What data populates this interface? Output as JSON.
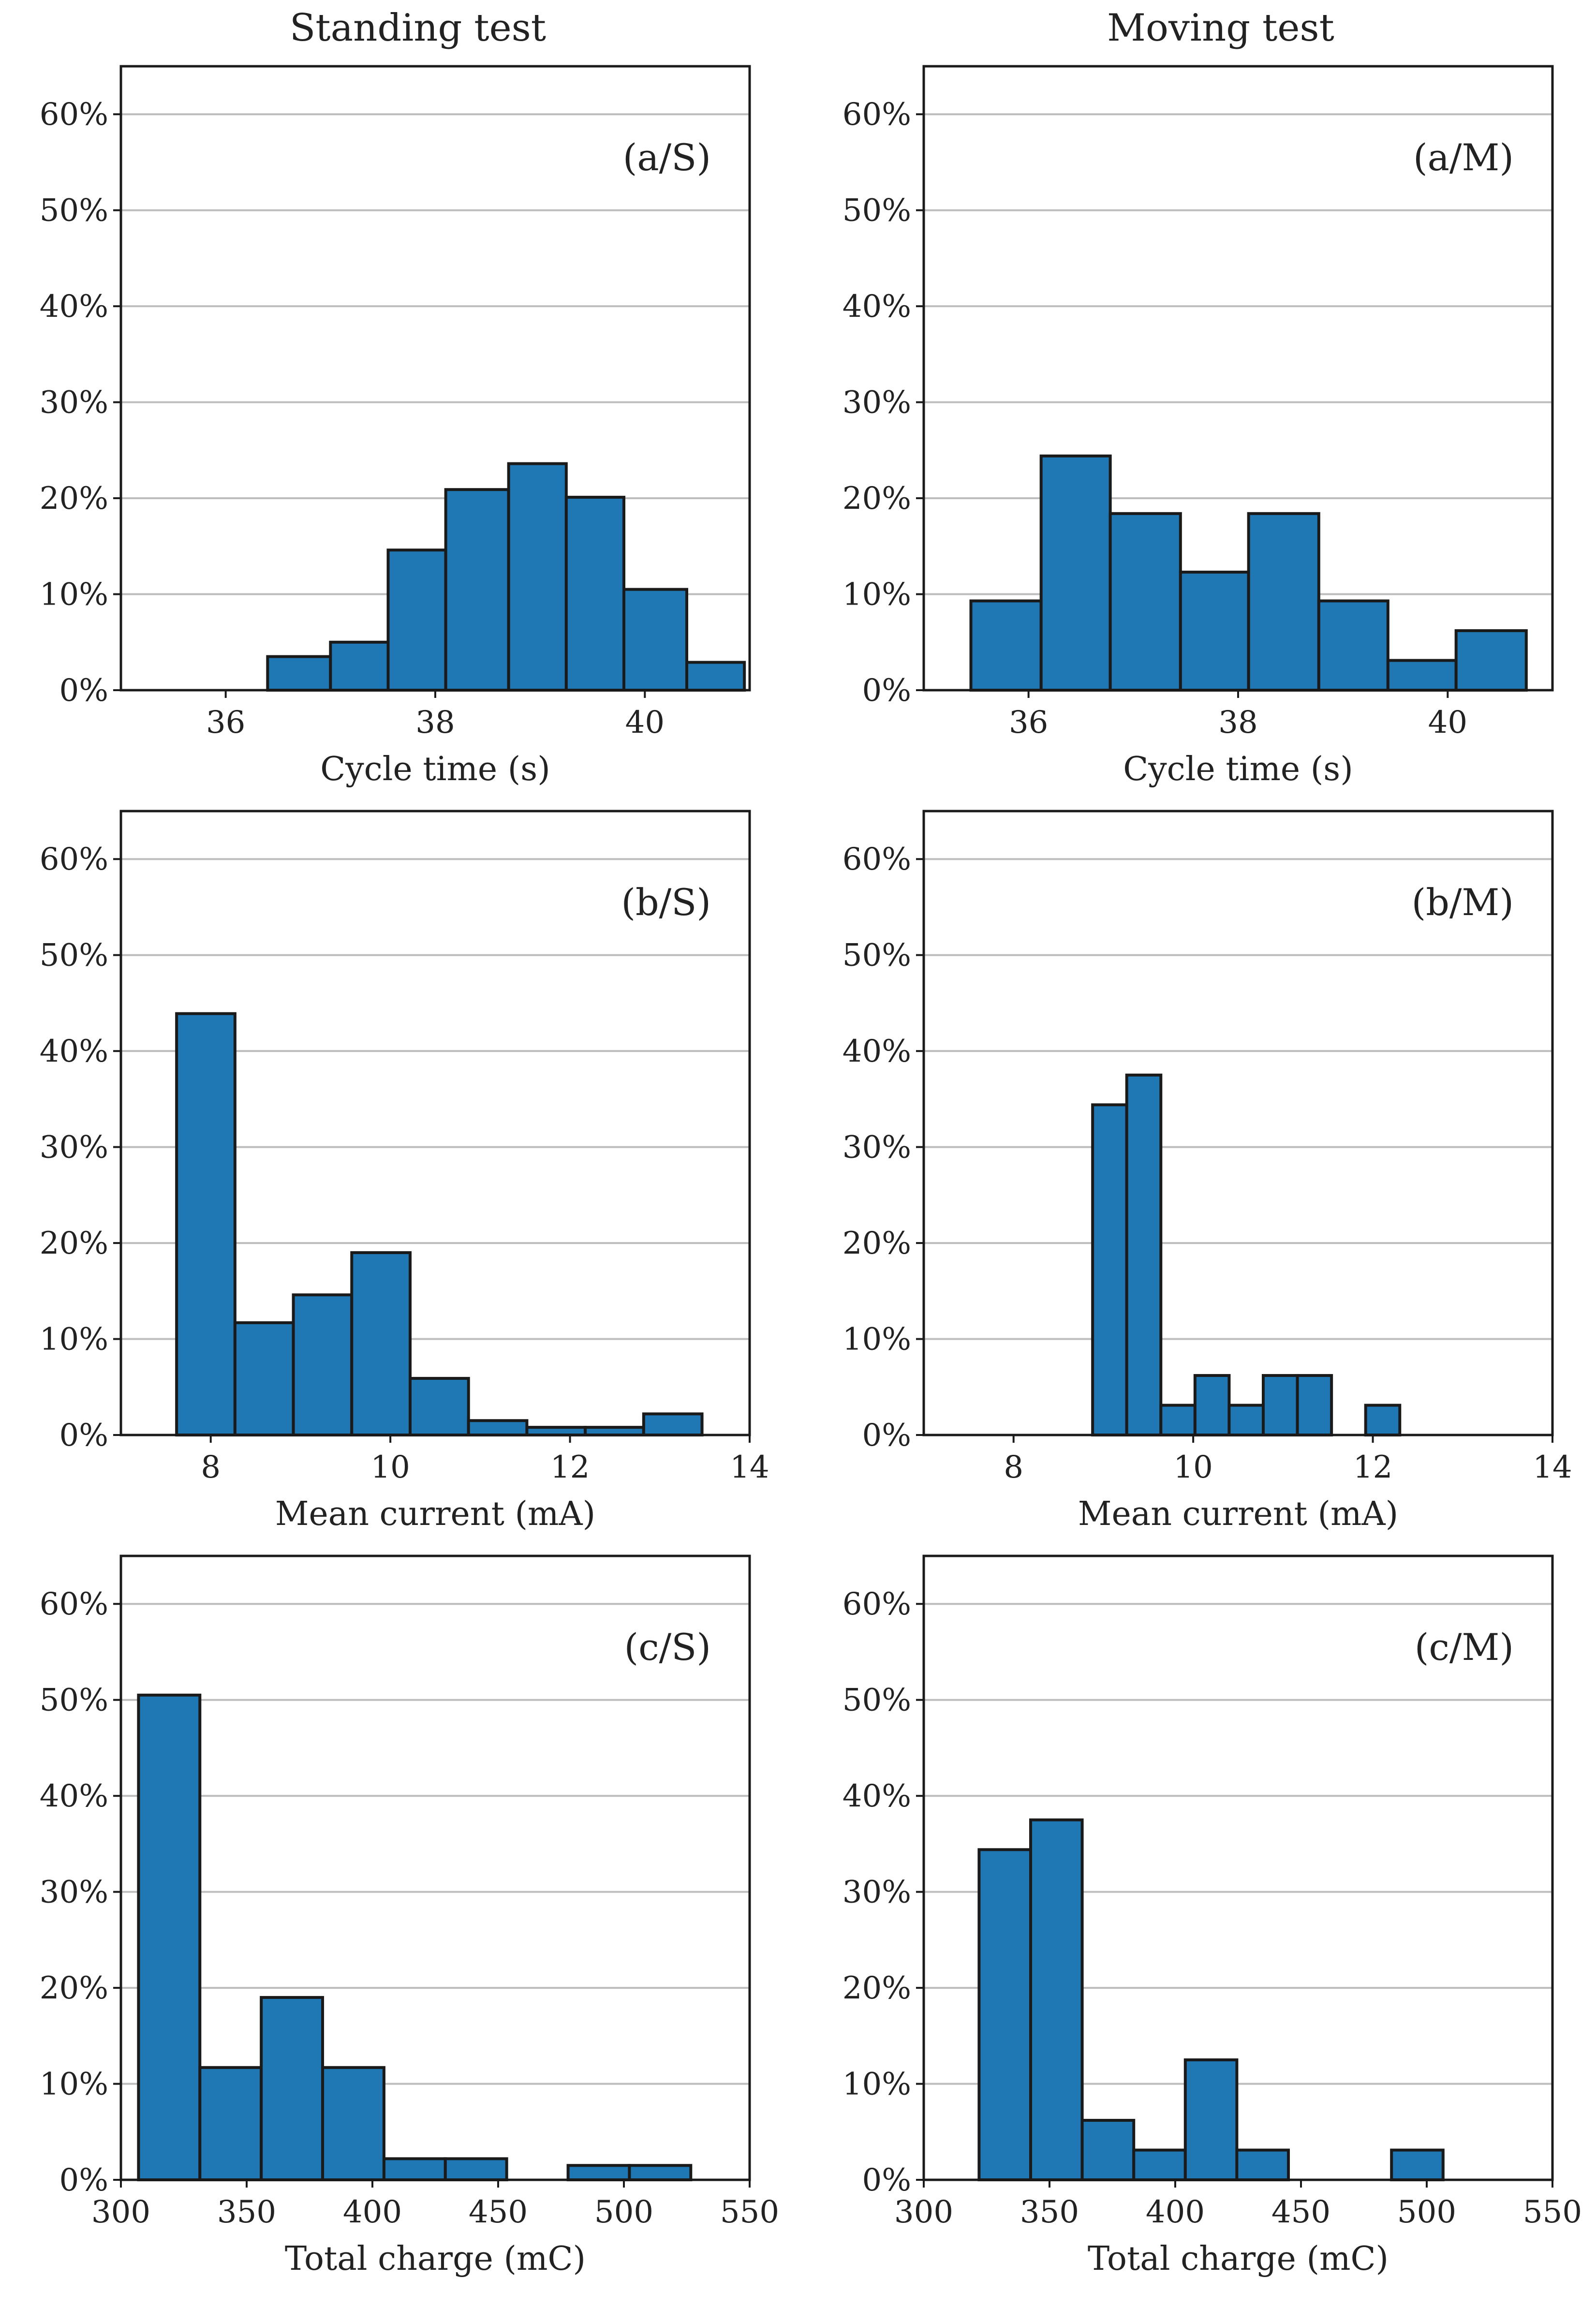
{
  "figure": {
    "column_titles": [
      "Standing test",
      "Moving test"
    ],
    "bar_color": "#1f77b4",
    "edge_color": "#1a1a1a",
    "grid_color": "#bdbdbd"
  },
  "chart_data": [
    {
      "id": "a-S",
      "type": "bar",
      "panel_label": "(a/S)",
      "column": 0,
      "row": 0,
      "xlabel": "Cycle time (s)",
      "ylabel": "",
      "xlim": [
        35.0,
        41.0
      ],
      "xticks": [
        36,
        38,
        40
      ],
      "xtick_labels": [
        "36",
        "38",
        "40"
      ],
      "ylim": [
        0,
        0.65
      ],
      "yticks": [
        0,
        0.1,
        0.2,
        0.3,
        0.4,
        0.5,
        0.6
      ],
      "ytick_labels": [
        "0%",
        "10%",
        "20%",
        "30%",
        "40%",
        "50%",
        "60%"
      ],
      "bins": [
        [
          36.4,
          37.0
        ],
        [
          37.0,
          37.55
        ],
        [
          37.55,
          38.1
        ],
        [
          38.1,
          38.7
        ],
        [
          38.7,
          39.25
        ],
        [
          39.25,
          39.8
        ],
        [
          39.8,
          40.4
        ],
        [
          40.4,
          40.95
        ]
      ],
      "values": [
        0.035,
        0.05,
        0.146,
        0.209,
        0.236,
        0.201,
        0.105,
        0.029
      ]
    },
    {
      "id": "a-M",
      "type": "bar",
      "panel_label": "(a/M)",
      "column": 1,
      "row": 0,
      "xlabel": "Cycle time (s)",
      "ylabel": "",
      "xlim": [
        35.0,
        41.0
      ],
      "xticks": [
        36,
        38,
        40
      ],
      "xtick_labels": [
        "36",
        "38",
        "40"
      ],
      "ylim": [
        0,
        0.65
      ],
      "yticks": [
        0,
        0.1,
        0.2,
        0.3,
        0.4,
        0.5,
        0.6
      ],
      "ytick_labels": [
        "0%",
        "10%",
        "20%",
        "30%",
        "40%",
        "50%",
        "60%"
      ],
      "bins": [
        [
          35.45,
          36.12
        ],
        [
          36.12,
          36.78
        ],
        [
          36.78,
          37.45
        ],
        [
          37.45,
          38.1
        ],
        [
          38.1,
          38.77
        ],
        [
          38.77,
          39.43
        ],
        [
          39.43,
          40.08
        ],
        [
          40.08,
          40.75
        ]
      ],
      "values": [
        0.093,
        0.244,
        0.184,
        0.123,
        0.184,
        0.093,
        0.031,
        0.062
      ]
    },
    {
      "id": "b-S",
      "type": "bar",
      "panel_label": "(b/S)",
      "column": 0,
      "row": 1,
      "xlabel": "Mean current (mA)",
      "ylabel": "",
      "xlim": [
        7.0,
        14.0
      ],
      "xticks": [
        8,
        10,
        12,
        14
      ],
      "xtick_labels": [
        "8",
        "10",
        "12",
        "14"
      ],
      "ylim": [
        0,
        0.65
      ],
      "yticks": [
        0,
        0.1,
        0.2,
        0.3,
        0.4,
        0.5,
        0.6
      ],
      "ytick_labels": [
        "0%",
        "10%",
        "20%",
        "30%",
        "40%",
        "50%",
        "60%"
      ],
      "bins": [
        [
          7.62,
          8.27
        ],
        [
          8.27,
          8.92
        ],
        [
          8.92,
          9.57
        ],
        [
          9.57,
          10.22
        ],
        [
          10.22,
          10.87
        ],
        [
          10.87,
          11.52
        ],
        [
          11.52,
          12.17
        ],
        [
          12.17,
          12.82
        ],
        [
          12.82,
          13.47
        ]
      ],
      "values": [
        0.439,
        0.117,
        0.146,
        0.19,
        0.059,
        0.015,
        0.008,
        0.008,
        0.022
      ]
    },
    {
      "id": "b-M",
      "type": "bar",
      "panel_label": "(b/M)",
      "column": 1,
      "row": 1,
      "xlabel": "Mean current (mA)",
      "ylabel": "",
      "xlim": [
        7.0,
        14.0
      ],
      "xticks": [
        8,
        10,
        12,
        14
      ],
      "xtick_labels": [
        "8",
        "10",
        "12",
        "14"
      ],
      "ylim": [
        0,
        0.65
      ],
      "yticks": [
        0,
        0.1,
        0.2,
        0.3,
        0.4,
        0.5,
        0.6
      ],
      "ytick_labels": [
        "0%",
        "10%",
        "20%",
        "30%",
        "40%",
        "50%",
        "60%"
      ],
      "bins": [
        [
          8.88,
          9.26
        ],
        [
          9.26,
          9.64
        ],
        [
          9.64,
          10.02
        ],
        [
          10.02,
          10.4
        ],
        [
          10.4,
          10.78
        ],
        [
          10.78,
          11.16
        ],
        [
          11.16,
          11.54
        ],
        [
          11.54,
          11.92
        ],
        [
          11.92,
          12.3
        ]
      ],
      "values": [
        0.344,
        0.375,
        0.031,
        0.062,
        0.031,
        0.062,
        0.062,
        0.0,
        0.031
      ]
    },
    {
      "id": "c-S",
      "type": "bar",
      "panel_label": "(c/S)",
      "column": 0,
      "row": 2,
      "xlabel": "Total charge (mC)",
      "ylabel": "",
      "xlim": [
        300,
        550
      ],
      "xticks": [
        300,
        350,
        400,
        450,
        500,
        550
      ],
      "xtick_labels": [
        "300",
        "350",
        "400",
        "450",
        "500",
        "550"
      ],
      "ylim": [
        0,
        0.65
      ],
      "yticks": [
        0,
        0.1,
        0.2,
        0.3,
        0.4,
        0.5,
        0.6
      ],
      "ytick_labels": [
        "0%",
        "10%",
        "20%",
        "30%",
        "40%",
        "50%",
        "60%"
      ],
      "bins": [
        [
          307,
          331.4
        ],
        [
          331.4,
          355.8
        ],
        [
          355.8,
          380.2
        ],
        [
          380.2,
          404.6
        ],
        [
          404.6,
          429.0
        ],
        [
          429.0,
          453.4
        ],
        [
          453.4,
          477.8
        ],
        [
          477.8,
          502.2
        ],
        [
          502.2,
          526.6
        ]
      ],
      "values": [
        0.505,
        0.117,
        0.19,
        0.117,
        0.022,
        0.022,
        0.0,
        0.015,
        0.015
      ]
    },
    {
      "id": "c-M",
      "type": "bar",
      "panel_label": "(c/M)",
      "column": 1,
      "row": 2,
      "xlabel": "Total charge (mC)",
      "ylabel": "",
      "xlim": [
        300,
        550
      ],
      "xticks": [
        300,
        350,
        400,
        450,
        500,
        550
      ],
      "xtick_labels": [
        "300",
        "350",
        "400",
        "450",
        "500",
        "550"
      ],
      "ylim": [
        0,
        0.65
      ],
      "yticks": [
        0,
        0.1,
        0.2,
        0.3,
        0.4,
        0.5,
        0.6
      ],
      "ytick_labels": [
        "0%",
        "10%",
        "20%",
        "30%",
        "40%",
        "50%",
        "60%"
      ],
      "bins": [
        [
          322,
          342.5
        ],
        [
          342.5,
          363
        ],
        [
          363,
          383.5
        ],
        [
          383.5,
          404
        ],
        [
          404,
          424.5
        ],
        [
          424.5,
          445
        ],
        [
          445,
          465.5
        ],
        [
          465.5,
          486
        ],
        [
          486,
          506.5
        ]
      ],
      "values": [
        0.344,
        0.375,
        0.062,
        0.031,
        0.125,
        0.031,
        0.0,
        0.0,
        0.031
      ]
    }
  ]
}
